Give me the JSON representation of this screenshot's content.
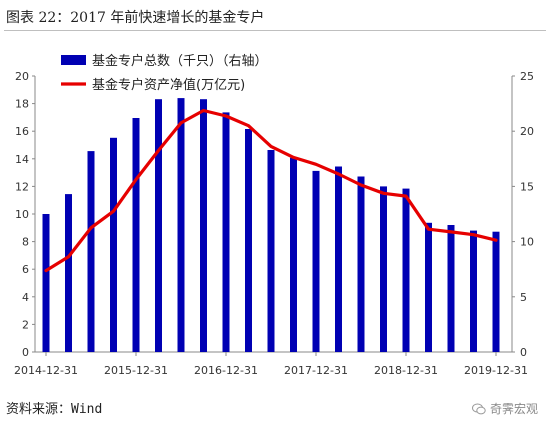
{
  "header": {
    "title": "图表 22：2017 年前快速增长的基金专户"
  },
  "footer": {
    "source": "资料来源：Wind",
    "watermark": "奇霁宏观"
  },
  "icons": {
    "watermark": "wechat-icon"
  },
  "colors": {
    "bar": "#0000b3",
    "line": "#e60000"
  },
  "chart_data": {
    "type": "bar+line",
    "title": "",
    "legend_position": "top-left",
    "x_tick_labels": [
      "2014-12-31",
      "2015-12-31",
      "2016-12-31",
      "2017-12-31",
      "2018-12-31",
      "2019-12-31"
    ],
    "left_axis": {
      "ylim": [
        0,
        20
      ],
      "ticks": [
        "0",
        "2",
        "4",
        "6",
        "8",
        "10",
        "12",
        "14",
        "16",
        "18",
        "20"
      ]
    },
    "right_axis": {
      "ylim": [
        0,
        25
      ],
      "ticks": [
        "0",
        "5",
        "10",
        "15",
        "20",
        "25"
      ]
    },
    "x": [
      "2014-12-31",
      "2015-03-31",
      "2015-06-30",
      "2015-09-30",
      "2015-12-31",
      "2016-03-31",
      "2016-06-30",
      "2016-09-30",
      "2016-12-31",
      "2017-03-31",
      "2017-06-30",
      "2017-09-30",
      "2017-12-31",
      "2018-03-31",
      "2018-06-30",
      "2018-09-30",
      "2018-12-31",
      "2019-03-31",
      "2019-06-30",
      "2019-09-30",
      "2019-12-31"
    ],
    "series": [
      {
        "name": "基金专户总数（千只）（右轴）",
        "type": "bar",
        "axis": "right",
        "values": [
          12.5,
          14.3,
          18.2,
          19.4,
          21.2,
          22.9,
          23.0,
          22.9,
          21.7,
          20.2,
          18.3,
          17.6,
          16.4,
          16.8,
          15.9,
          15.0,
          14.8,
          11.7,
          11.5,
          11.0,
          10.9
        ]
      },
      {
        "name": "基金专户资产净值(万亿元)",
        "type": "line",
        "axis": "left",
        "values": [
          5.9,
          6.9,
          9.0,
          10.2,
          12.5,
          14.6,
          16.6,
          17.5,
          17.1,
          16.4,
          14.9,
          14.1,
          13.6,
          12.9,
          12.1,
          11.5,
          11.3,
          8.9,
          8.7,
          8.5,
          8.1
        ]
      }
    ]
  }
}
